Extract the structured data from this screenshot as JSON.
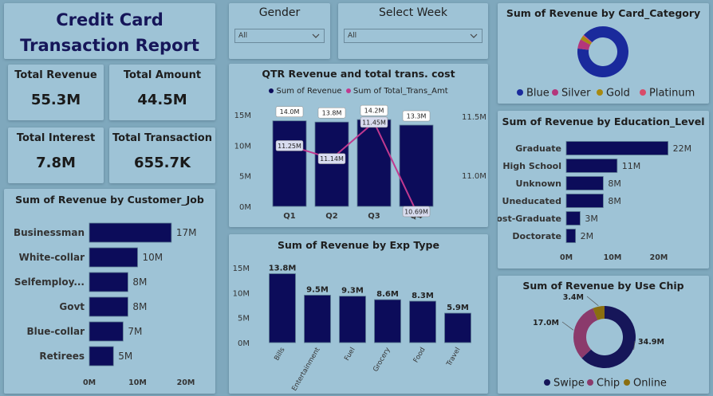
{
  "report_title": {
    "line1": "Credit Card",
    "line2": "Transaction Report"
  },
  "kpis": [
    {
      "label": "Total Revenue",
      "value": "55.3M"
    },
    {
      "label": "Total Amount",
      "value": "44.5M"
    },
    {
      "label": "Total Interest",
      "value": "7.8M"
    },
    {
      "label": "Total Transaction",
      "value": "655.7K"
    }
  ],
  "slicers": {
    "gender": {
      "title": "Gender",
      "value": "All"
    },
    "week": {
      "title": "Select Week",
      "value": "All"
    }
  },
  "colors": {
    "navy": "#0c0c5a",
    "magenta": "#c0398f",
    "blue": "#1a2a9c",
    "silver": "#b4367b",
    "gold": "#a88a10",
    "platinum": "#d94c6a",
    "chip": "#8b3a6c",
    "online": "#8a6e10",
    "swipe": "#161659"
  },
  "chart_data": [
    {
      "id": "customer_job",
      "type": "bar",
      "orientation": "horizontal",
      "title": "Sum of Revenue by Customer_Job",
      "categories": [
        "Businessman",
        "White-collar",
        "Selfemploy...",
        "Govt",
        "Blue-collar",
        "Retirees"
      ],
      "values": [
        17,
        10,
        8,
        8,
        7,
        5
      ],
      "data_labels": [
        "17M",
        "10M",
        "8M",
        "8M",
        "7M",
        "5M"
      ],
      "x_ticks": [
        "0M",
        "10M",
        "20M"
      ],
      "xlim": [
        0,
        20
      ]
    },
    {
      "id": "qtr_revenue",
      "type": "bar",
      "title": "QTR Revenue and total trans. cost",
      "legend": [
        "Sum of Revenue",
        "Sum of Total_Trans_Amt"
      ],
      "categories": [
        "Q1",
        "Q2",
        "Q3",
        "Q4"
      ],
      "series": [
        {
          "name": "Sum of Revenue",
          "values": [
            14.0,
            13.8,
            14.2,
            13.3
          ],
          "labels": [
            "14.0M",
            "13.8M",
            "14.2M",
            "13.3M"
          ]
        },
        {
          "name": "Sum of Total_Trans_Amt",
          "values": [
            11.25,
            11.14,
            11.45,
            10.69
          ],
          "labels": [
            "11.25M",
            "11.14M",
            "11.45M",
            "10.69M"
          ]
        }
      ],
      "y_ticks": [
        "15M",
        "10M",
        "5M",
        "0M"
      ],
      "ylim": [
        0,
        15
      ],
      "y2_ticks": [
        "11.5M",
        "11.0M"
      ],
      "y2lim": [
        10.7,
        11.5
      ]
    },
    {
      "id": "exp_type",
      "type": "bar",
      "title": "Sum of Revenue by Exp Type",
      "categories": [
        "Bills",
        "Entertainment",
        "Fuel",
        "Grocery",
        "Food",
        "Travel"
      ],
      "values": [
        13.8,
        9.5,
        9.3,
        8.6,
        8.3,
        5.9
      ],
      "data_labels": [
        "13.8M",
        "9.5M",
        "9.3M",
        "8.6M",
        "8.3M",
        "5.9M"
      ],
      "y_ticks": [
        "15M",
        "10M",
        "5M",
        "0M"
      ],
      "ylim": [
        0,
        15
      ]
    },
    {
      "id": "card_category",
      "type": "pie",
      "title": "Sum of Revenue by Card_Category",
      "categories": [
        "Blue",
        "Silver",
        "Gold",
        "Platinum"
      ],
      "values": [
        50.1,
        3.3,
        1.5,
        0.4
      ]
    },
    {
      "id": "education",
      "type": "bar",
      "orientation": "horizontal",
      "title": "Sum of Revenue by Education_Level",
      "categories": [
        "Graduate",
        "High School",
        "Unknown",
        "Uneducated",
        "Post-Graduate",
        "Doctorate"
      ],
      "values": [
        22,
        11,
        8,
        8,
        3,
        2
      ],
      "data_labels": [
        "22M",
        "11M",
        "8M",
        "8M",
        "3M",
        "2M"
      ],
      "x_ticks": [
        "0M",
        "10M",
        "20M"
      ],
      "xlim": [
        0,
        20
      ]
    },
    {
      "id": "use_chip",
      "type": "pie",
      "title": "Sum of Revenue by Use Chip",
      "categories": [
        "Swipe",
        "Chip",
        "Online"
      ],
      "values": [
        34.9,
        17.0,
        3.4
      ],
      "data_labels": [
        "34.9M",
        "17.0M",
        "3.4M"
      ]
    }
  ]
}
